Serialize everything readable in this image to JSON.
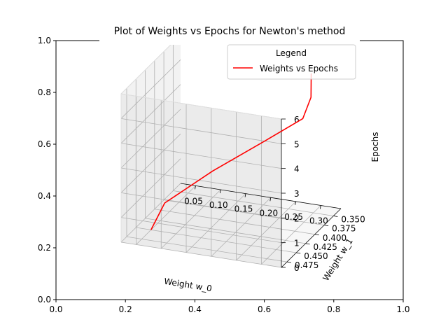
{
  "chart_data": {
    "type": "line",
    "title": "Plot of Weights vs Epochs for Newton's method",
    "projection": "3d",
    "xlabel": "Weight w_0",
    "ylabel": "Weight w_1",
    "zlabel": "Epochs",
    "xlim": [
      0.02,
      0.34
    ],
    "ylim": [
      0.33,
      0.49
    ],
    "zlim": [
      0,
      6
    ],
    "xticks": [
      "0.05",
      "0.10",
      "0.15",
      "0.20",
      "0.25",
      "0.30"
    ],
    "yticks": [
      "0.350",
      "0.375",
      "0.400",
      "0.425",
      "0.450",
      "0.475"
    ],
    "zticks": [
      "0",
      "1",
      "2",
      "3",
      "4",
      "5",
      "6"
    ],
    "outer_axes": {
      "xticks": [
        "0.0",
        "0.2",
        "0.4",
        "0.6",
        "0.8",
        "1.0"
      ],
      "yticks": [
        "0.0",
        "0.2",
        "0.4",
        "0.6",
        "0.8",
        "1.0"
      ]
    },
    "legend": {
      "title": "Legend",
      "placement": "top-right",
      "entries": [
        "Weights vs Epochs"
      ]
    },
    "grid": true,
    "series": [
      {
        "name": "Weights vs Epochs",
        "color": "#ff0000",
        "x": [
          0.05,
          0.07,
          0.14,
          0.22,
          0.29,
          0.31,
          0.312
        ],
        "y": [
          0.45,
          0.44,
          0.405,
          0.375,
          0.365,
          0.37,
          0.372
        ],
        "z": [
          0,
          1,
          2,
          3,
          4,
          5,
          6
        ]
      }
    ]
  }
}
